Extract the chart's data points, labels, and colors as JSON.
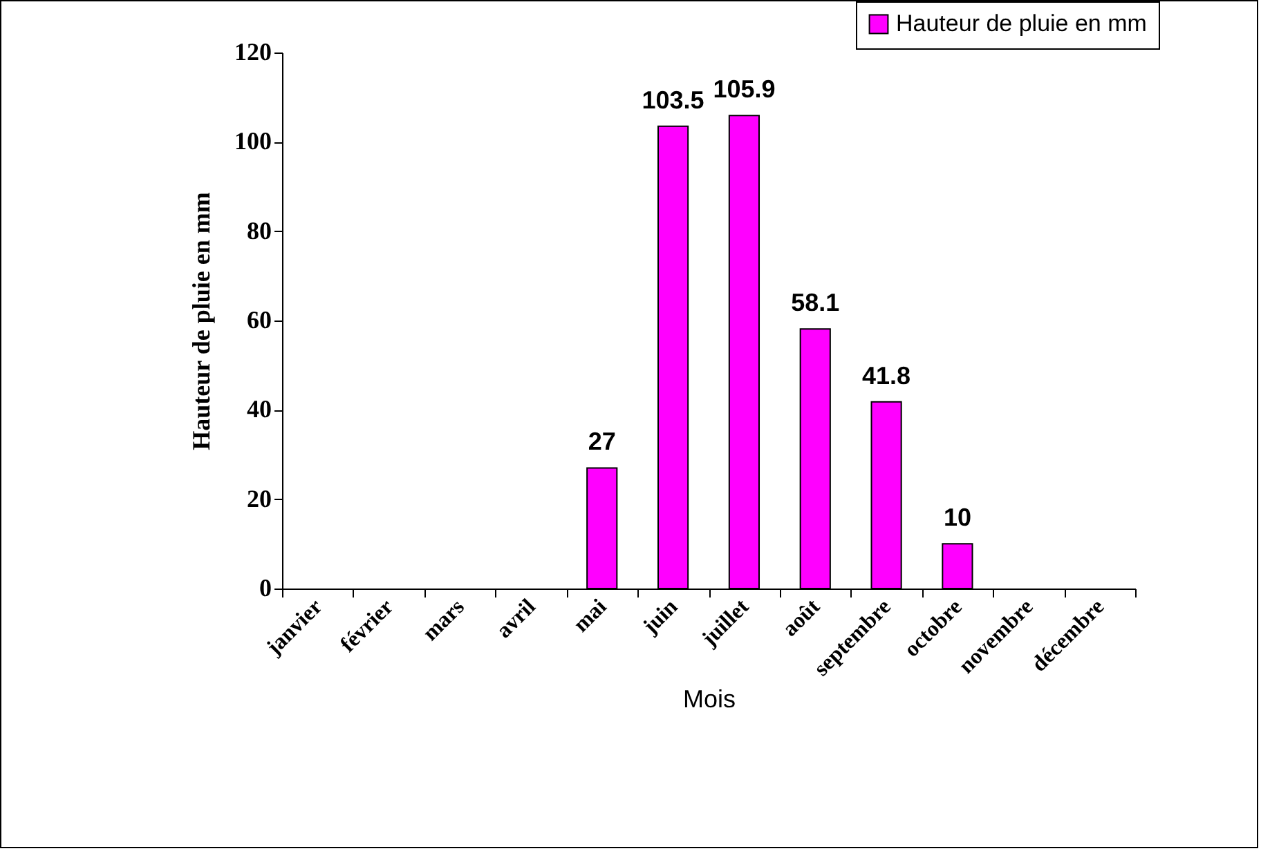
{
  "chart_data": {
    "type": "bar",
    "xlabel": "Mois",
    "ylabel": "Hauteur de pluie en mm",
    "categories": [
      "janvier",
      "février",
      "mars",
      "avril",
      "mai",
      "juin",
      "juillet",
      "août",
      "septembre",
      "octobre",
      "novembre",
      "décembre"
    ],
    "series": [
      {
        "name": "Hauteur de pluie en mm",
        "color": "#ff00ff",
        "values": [
          null,
          null,
          null,
          null,
          27,
          103.5,
          105.9,
          58.1,
          41.8,
          10,
          null,
          null
        ]
      }
    ],
    "ylim": [
      0,
      120
    ],
    "yticks": [
      0,
      20,
      40,
      60,
      80,
      100,
      120
    ],
    "grid": false,
    "legend": "top right",
    "data_labels": true
  }
}
